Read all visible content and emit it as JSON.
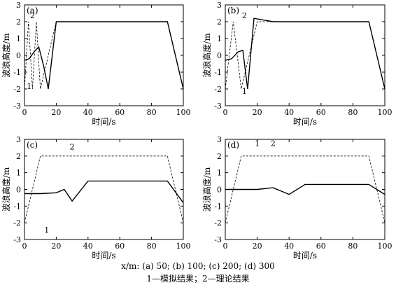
{
  "chart_data": [
    {
      "type": "line",
      "panel_label": "(a)",
      "xlabel": "时间/s",
      "ylabel": "波浪高度/m",
      "xlim": [
        0,
        100
      ],
      "ylim": [
        -3,
        3
      ],
      "xticks": [
        0,
        20,
        40,
        60,
        80,
        100
      ],
      "yticks": [
        -3,
        -2,
        -1,
        0,
        1,
        2,
        3
      ],
      "grid": false,
      "series": [
        {
          "name": "1",
          "style": "solid",
          "color": "#000000",
          "x": [
            0,
            3,
            6,
            9,
            12,
            15,
            20,
            30,
            40,
            50,
            60,
            70,
            80,
            90,
            100
          ],
          "y": [
            -0.3,
            -0.2,
            0.2,
            0.5,
            -0.6,
            -2.0,
            2.0,
            2.0,
            2.0,
            2.0,
            2.0,
            2.0,
            2.0,
            2.0,
            -2.0
          ]
        },
        {
          "name": "2",
          "style": "dashed",
          "color": "#000000",
          "x": [
            0,
            2.5,
            5,
            7.5,
            10,
            20,
            30,
            40,
            50,
            60,
            70,
            80,
            90,
            100
          ],
          "y": [
            -2.0,
            2.0,
            -2.0,
            2.0,
            -2.0,
            2.0,
            2.0,
            2.0,
            2.0,
            2.0,
            2.0,
            2.0,
            2.0,
            -2.0
          ]
        }
      ],
      "annotations": [
        {
          "text": "2",
          "x": 5,
          "y": 2.2
        },
        {
          "text": "1",
          "x": 3,
          "y": -2.0
        }
      ]
    },
    {
      "type": "line",
      "panel_label": "(b)",
      "xlabel": "时间/s",
      "ylabel": "波浪高度/m",
      "xlim": [
        0,
        100
      ],
      "ylim": [
        -3,
        3
      ],
      "xticks": [
        0,
        20,
        40,
        60,
        80,
        100
      ],
      "yticks": [
        -3,
        -2,
        -1,
        0,
        1,
        2,
        3
      ],
      "grid": false,
      "series": [
        {
          "name": "1",
          "style": "solid",
          "color": "#000000",
          "x": [
            0,
            4,
            8,
            11,
            14,
            18,
            30,
            40,
            50,
            60,
            70,
            80,
            90,
            100
          ],
          "y": [
            -0.3,
            -0.2,
            0.2,
            0.3,
            -2.0,
            2.2,
            2.0,
            2.0,
            2.0,
            2.0,
            2.0,
            2.0,
            2.0,
            -2.0
          ]
        },
        {
          "name": "2",
          "style": "dashed",
          "color": "#000000",
          "x": [
            0,
            5,
            10,
            20,
            30,
            40,
            50,
            60,
            70,
            80,
            90,
            100
          ],
          "y": [
            -2.0,
            2.0,
            -2.0,
            2.0,
            2.0,
            2.0,
            2.0,
            2.0,
            2.0,
            2.0,
            2.0,
            -2.0
          ]
        }
      ],
      "annotations": [
        {
          "text": "2",
          "x": 12,
          "y": 2.2
        },
        {
          "text": "1",
          "x": 12,
          "y": -2.3
        }
      ]
    },
    {
      "type": "line",
      "panel_label": "(c)",
      "xlabel": "时间/s",
      "ylabel": "波浪高度/m",
      "xlim": [
        0,
        100
      ],
      "ylim": [
        -3,
        3
      ],
      "xticks": [
        0,
        20,
        40,
        60,
        80,
        100
      ],
      "yticks": [
        -3,
        -2,
        -1,
        0,
        1,
        2,
        3
      ],
      "grid": false,
      "series": [
        {
          "name": "1",
          "style": "solid",
          "color": "#000000",
          "x": [
            0,
            10,
            20,
            25,
            30,
            40,
            50,
            60,
            70,
            80,
            90,
            100
          ],
          "y": [
            -0.25,
            -0.25,
            -0.2,
            0.0,
            -0.7,
            0.5,
            0.5,
            0.5,
            0.5,
            0.5,
            0.5,
            -0.8
          ]
        },
        {
          "name": "2",
          "style": "dashed",
          "color": "#000000",
          "x": [
            0,
            10,
            20,
            30,
            40,
            50,
            60,
            70,
            80,
            90,
            100
          ],
          "y": [
            -2.0,
            2.0,
            2.0,
            2.0,
            2.0,
            2.0,
            2.0,
            2.0,
            2.0,
            2.0,
            -2.0
          ]
        }
      ],
      "annotations": [
        {
          "text": "2",
          "x": 30,
          "y": 2.4
        },
        {
          "text": "1",
          "x": 14,
          "y": -2.6
        }
      ]
    },
    {
      "type": "line",
      "panel_label": "(d)",
      "xlabel": "时间/s",
      "ylabel": "波浪高度/m",
      "xlim": [
        0,
        100
      ],
      "ylim": [
        -3,
        3
      ],
      "xticks": [
        0,
        20,
        40,
        60,
        80,
        100
      ],
      "yticks": [
        -3,
        -2,
        -1,
        0,
        1,
        2,
        3
      ],
      "grid": false,
      "series": [
        {
          "name": "1",
          "style": "solid",
          "color": "#000000",
          "x": [
            0,
            10,
            20,
            30,
            40,
            50,
            60,
            70,
            80,
            90,
            100
          ],
          "y": [
            0.0,
            0.0,
            0.0,
            0.1,
            -0.3,
            0.3,
            0.3,
            0.3,
            0.3,
            0.3,
            -0.3
          ]
        },
        {
          "name": "2",
          "style": "dashed",
          "color": "#000000",
          "x": [
            0,
            10,
            20,
            30,
            40,
            50,
            60,
            70,
            80,
            90,
            100
          ],
          "y": [
            -2.0,
            2.0,
            2.0,
            2.0,
            2.0,
            2.0,
            2.0,
            2.0,
            2.0,
            2.0,
            -2.0
          ]
        }
      ],
      "annotations": [
        {
          "text": "1",
          "x": 20,
          "y": 2.6
        },
        {
          "text": "2",
          "x": 30,
          "y": 2.6
        }
      ]
    }
  ],
  "caption": {
    "line1": "x/m: (a) 50; (b) 100; (c) 200; (d) 300",
    "line2": "1—模拟结果；2—理论结果"
  }
}
